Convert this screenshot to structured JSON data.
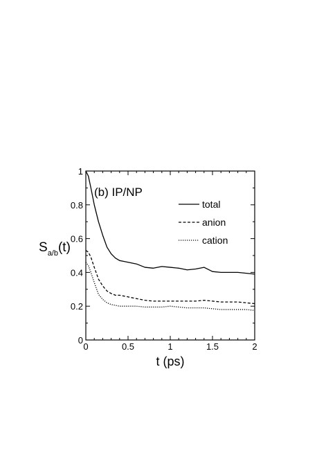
{
  "chart_data": {
    "type": "line",
    "panel_label": "(b) IP/NP",
    "xlabel": "t (ps)",
    "ylabel_main": "S",
    "ylabel_sub": "a/b",
    "ylabel_tail": "(t)",
    "xlim": [
      0,
      2
    ],
    "ylim": [
      0,
      1
    ],
    "x_ticks": [
      "0",
      "0.5",
      "1",
      "1.5",
      "2"
    ],
    "y_ticks": [
      "0",
      "0.2",
      "0.4",
      "0.6",
      "0.8",
      "1"
    ],
    "grid": false,
    "legend_position": "top-right",
    "series": [
      {
        "name": "total",
        "dash": "solid",
        "x": [
          0,
          0.03,
          0.06,
          0.1,
          0.15,
          0.2,
          0.25,
          0.3,
          0.35,
          0.4,
          0.45,
          0.5,
          0.6,
          0.7,
          0.8,
          0.9,
          1.0,
          1.1,
          1.2,
          1.3,
          1.4,
          1.5,
          1.6,
          1.7,
          1.8,
          1.9,
          2.0
        ],
        "values": [
          1.0,
          0.97,
          0.9,
          0.8,
          0.7,
          0.62,
          0.55,
          0.51,
          0.485,
          0.47,
          0.465,
          0.46,
          0.45,
          0.43,
          0.425,
          0.435,
          0.43,
          0.425,
          0.415,
          0.42,
          0.43,
          0.405,
          0.4,
          0.4,
          0.4,
          0.395,
          0.39
        ]
      },
      {
        "name": "anion",
        "dash": "dashed",
        "x": [
          0,
          0.03,
          0.06,
          0.1,
          0.15,
          0.2,
          0.25,
          0.3,
          0.35,
          0.4,
          0.45,
          0.5,
          0.6,
          0.7,
          0.8,
          0.9,
          1.0,
          1.1,
          1.2,
          1.3,
          1.4,
          1.5,
          1.6,
          1.7,
          1.8,
          1.9,
          2.0
        ],
        "values": [
          0.53,
          0.52,
          0.49,
          0.43,
          0.36,
          0.32,
          0.29,
          0.275,
          0.265,
          0.265,
          0.26,
          0.255,
          0.245,
          0.235,
          0.23,
          0.23,
          0.23,
          0.23,
          0.23,
          0.23,
          0.235,
          0.23,
          0.225,
          0.225,
          0.225,
          0.22,
          0.215
        ]
      },
      {
        "name": "cation",
        "dash": "dotted",
        "x": [
          0,
          0.03,
          0.06,
          0.1,
          0.15,
          0.2,
          0.25,
          0.3,
          0.35,
          0.4,
          0.45,
          0.5,
          0.6,
          0.7,
          0.8,
          0.9,
          1.0,
          1.1,
          1.2,
          1.3,
          1.4,
          1.5,
          1.6,
          1.7,
          1.8,
          1.9,
          2.0
        ],
        "values": [
          0.46,
          0.44,
          0.4,
          0.34,
          0.27,
          0.24,
          0.22,
          0.21,
          0.205,
          0.2,
          0.2,
          0.2,
          0.2,
          0.195,
          0.195,
          0.195,
          0.2,
          0.195,
          0.19,
          0.19,
          0.19,
          0.185,
          0.18,
          0.18,
          0.18,
          0.18,
          0.175
        ]
      }
    ]
  }
}
